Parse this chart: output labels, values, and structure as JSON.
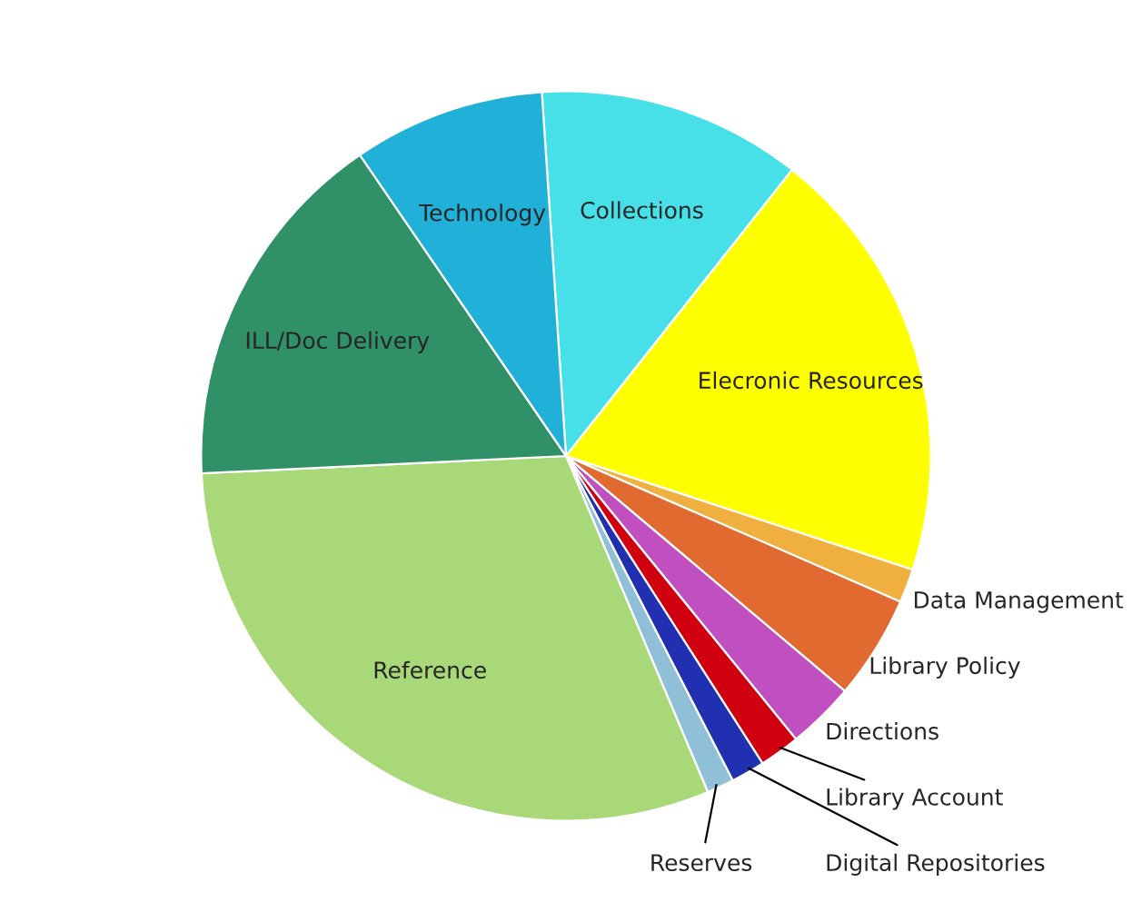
{
  "chart_data": {
    "type": "pie",
    "categories": [
      "Collections",
      "Elecronic Resources",
      "Data Management",
      "Library Policy",
      "Directions",
      "Library Account",
      "Digital Repositories",
      "Reserves",
      "Reference",
      "ILL/Doc Delivery",
      "Technology"
    ],
    "values": [
      11.7,
      19.4,
      1.5,
      4.6,
      3.0,
      1.8,
      1.5,
      1.2,
      30.6,
      16.2,
      8.5
    ],
    "colors": [
      "#47dfe8",
      "#ffff00",
      "#f0b040",
      "#e06a30",
      "#c050c0",
      "#d00010",
      "#2030b0",
      "#90c0d8",
      "#a8d878",
      "#309068",
      "#20b0d8"
    ]
  }
}
